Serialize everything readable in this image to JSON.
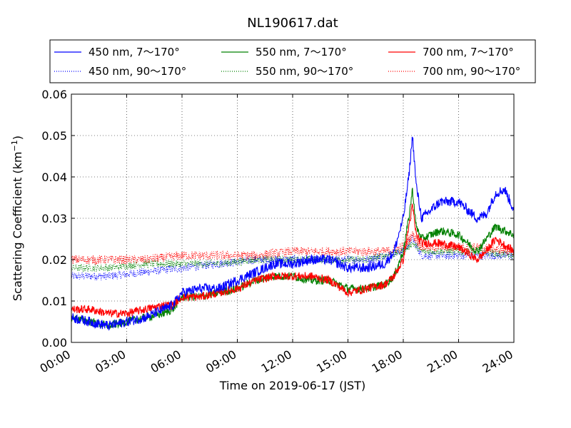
{
  "chart_data": {
    "type": "line",
    "title": "NL190617.dat",
    "xlabel": "Time on 2019-06-17 (JST)",
    "ylabel_main": "Scattering Coefficient (km",
    "ylabel_sup": "−1",
    "ylabel_close": ")",
    "xlim": [
      0,
      24
    ],
    "ylim": [
      0,
      0.06
    ],
    "x_ticks": [
      0,
      3,
      6,
      9,
      12,
      15,
      18,
      21,
      24
    ],
    "x_tick_labels": [
      "00:00",
      "03:00",
      "06:00",
      "09:00",
      "12:00",
      "15:00",
      "18:00",
      "21:00",
      "24:00"
    ],
    "y_ticks": [
      0,
      0.01,
      0.02,
      0.03,
      0.04,
      0.05,
      0.06
    ],
    "y_tick_labels": [
      "0.00",
      "0.01",
      "0.02",
      "0.03",
      "0.04",
      "0.05",
      "0.06"
    ],
    "grid": true,
    "legend_position": "top, outside plot, 3 columns",
    "series": [
      {
        "name": "450 nm, 7～170°",
        "color": "#0000ff",
        "style": "solid",
        "noise": 0.0012,
        "x": [
          0,
          1,
          2,
          3,
          4,
          5,
          5.5,
          6,
          7,
          8,
          9,
          10,
          11,
          12,
          13,
          14,
          14.5,
          15,
          16,
          17,
          17.5,
          18,
          18.3,
          18.5,
          18.7,
          19,
          19.5,
          20,
          21,
          22,
          22.5,
          23,
          23.5,
          24
        ],
        "y": [
          0.006,
          0.005,
          0.004,
          0.005,
          0.006,
          0.008,
          0.009,
          0.012,
          0.013,
          0.013,
          0.015,
          0.017,
          0.019,
          0.019,
          0.02,
          0.02,
          0.019,
          0.018,
          0.018,
          0.019,
          0.022,
          0.03,
          0.04,
          0.05,
          0.038,
          0.03,
          0.032,
          0.034,
          0.034,
          0.03,
          0.031,
          0.036,
          0.037,
          0.032
        ]
      },
      {
        "name": "450 nm, 90～170°",
        "color": "#0000ff",
        "style": "dotted",
        "noise": 0.001,
        "x": [
          0,
          2,
          4,
          6,
          8,
          10,
          12,
          14,
          16,
          17,
          18,
          18.5,
          19,
          20,
          22,
          24
        ],
        "y": [
          0.016,
          0.016,
          0.017,
          0.018,
          0.019,
          0.02,
          0.02,
          0.02,
          0.02,
          0.021,
          0.022,
          0.025,
          0.021,
          0.021,
          0.021,
          0.021
        ]
      },
      {
        "name": "550 nm, 7～170°",
        "color": "#008000",
        "style": "solid",
        "noise": 0.001,
        "x": [
          0,
          1,
          2,
          3,
          4,
          5,
          5.5,
          6,
          7,
          8,
          9,
          10,
          11,
          12,
          13,
          14,
          15,
          16,
          17,
          17.5,
          18,
          18.3,
          18.5,
          18.7,
          19,
          20,
          21,
          22,
          22.5,
          23,
          24
        ],
        "y": [
          0.006,
          0.005,
          0.004,
          0.005,
          0.006,
          0.007,
          0.008,
          0.011,
          0.011,
          0.012,
          0.013,
          0.015,
          0.016,
          0.016,
          0.015,
          0.015,
          0.013,
          0.013,
          0.014,
          0.016,
          0.022,
          0.03,
          0.037,
          0.028,
          0.025,
          0.027,
          0.026,
          0.022,
          0.025,
          0.028,
          0.026
        ]
      },
      {
        "name": "550 nm, 90～170°",
        "color": "#008000",
        "style": "dotted",
        "noise": 0.0009,
        "x": [
          0,
          2,
          4,
          6,
          8,
          10,
          12,
          14,
          16,
          17,
          18,
          18.5,
          19,
          20,
          22,
          24
        ],
        "y": [
          0.018,
          0.018,
          0.019,
          0.019,
          0.019,
          0.02,
          0.02,
          0.02,
          0.02,
          0.021,
          0.022,
          0.024,
          0.022,
          0.022,
          0.022,
          0.021
        ]
      },
      {
        "name": "700 nm, 7～170°",
        "color": "#ff0000",
        "style": "solid",
        "noise": 0.001,
        "x": [
          0,
          1,
          2,
          3,
          4,
          5,
          5.5,
          6,
          7,
          8,
          9,
          10,
          11,
          12,
          13,
          14,
          15,
          16,
          17,
          17.5,
          18,
          18.3,
          18.5,
          18.7,
          19,
          20,
          21,
          22,
          22.5,
          23,
          24
        ],
        "y": [
          0.008,
          0.008,
          0.007,
          0.007,
          0.008,
          0.009,
          0.009,
          0.011,
          0.011,
          0.012,
          0.013,
          0.015,
          0.016,
          0.016,
          0.016,
          0.015,
          0.012,
          0.013,
          0.014,
          0.016,
          0.02,
          0.028,
          0.033,
          0.026,
          0.024,
          0.024,
          0.023,
          0.02,
          0.022,
          0.025,
          0.022
        ]
      },
      {
        "name": "700 nm, 90～170°",
        "color": "#ff0000",
        "style": "dotted",
        "noise": 0.0011,
        "x": [
          0,
          2,
          4,
          6,
          8,
          10,
          12,
          14,
          16,
          17,
          18,
          18.5,
          19,
          20,
          22,
          24
        ],
        "y": [
          0.02,
          0.02,
          0.02,
          0.021,
          0.021,
          0.021,
          0.022,
          0.022,
          0.022,
          0.022,
          0.023,
          0.026,
          0.023,
          0.023,
          0.023,
          0.022
        ]
      }
    ]
  }
}
